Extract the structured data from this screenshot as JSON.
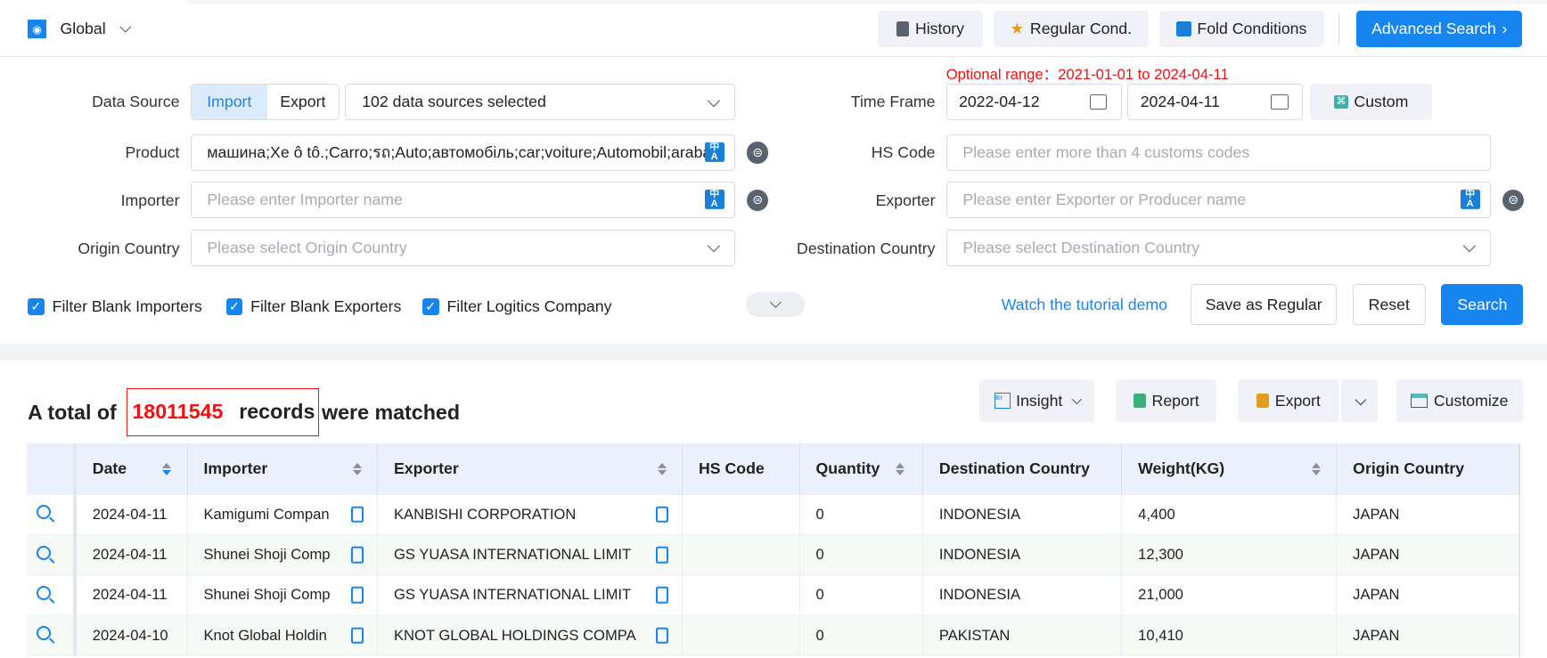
{
  "header": {
    "region": "Global",
    "buttons": {
      "history": "History",
      "regular": "Regular Cond.",
      "fold": "Fold Conditions",
      "advanced": "Advanced Search"
    }
  },
  "form": {
    "optional_range": "Optional range：2021-01-01 to 2024-04-11",
    "data_source": {
      "label": "Data Source",
      "import": "Import",
      "export": "Export",
      "selected": "102 data sources selected",
      "active": "Import"
    },
    "time_frame": {
      "label": "Time Frame",
      "start": "2022-04-12",
      "end": "2024-04-11",
      "custom": "Custom"
    },
    "product": {
      "label": "Product",
      "value": "машина;Xe ô tô.;Carro;รถ;Auto;автомобіль;car;voiture;Automobil;araba"
    },
    "hs_code": {
      "label": "HS Code",
      "placeholder": "Please enter more than 4 customs codes"
    },
    "importer": {
      "label": "Importer",
      "placeholder": "Please enter Importer name"
    },
    "exporter": {
      "label": "Exporter",
      "placeholder": "Please enter Exporter or Producer name"
    },
    "origin": {
      "label": "Origin Country",
      "placeholder": "Please select Origin Country"
    },
    "destination": {
      "label": "Destination Country",
      "placeholder": "Please select Destination Country"
    },
    "checkboxes": [
      {
        "label": "Filter Blank Importers",
        "checked": true
      },
      {
        "label": "Filter Blank Exporters",
        "checked": true
      },
      {
        "label": "Filter Logitics Company",
        "checked": true
      }
    ],
    "tutorial": "Watch the tutorial demo",
    "save_regular": "Save as Regular",
    "reset": "Reset",
    "search": "Search"
  },
  "results": {
    "prefix": "A total of",
    "count": "18011545",
    "records": "records",
    "suffix": "were matched",
    "toolbar": {
      "insight": "Insight",
      "report": "Report",
      "export": "Export",
      "customize": "Customize"
    },
    "columns": [
      "Date",
      "Importer",
      "Exporter",
      "HS Code",
      "Quantity",
      "Destination Country",
      "Weight(KG)",
      "Origin Country"
    ],
    "rows": [
      [
        "2024-04-11",
        "Kamigumi Compan",
        "KANBISHI CORPORATION",
        "",
        "0",
        "INDONESIA",
        "4,400",
        "JAPAN"
      ],
      [
        "2024-04-11",
        "Shunei Shoji Comp",
        "GS YUASA INTERNATIONAL LIMIT",
        "",
        "0",
        "INDONESIA",
        "12,300",
        "JAPAN"
      ],
      [
        "2024-04-11",
        "Shunei Shoji Comp",
        "GS YUASA INTERNATIONAL LIMIT",
        "",
        "0",
        "INDONESIA",
        "21,000",
        "JAPAN"
      ],
      [
        "2024-04-10",
        "Knot Global Holdin",
        "KNOT GLOBAL HOLDINGS COMPA",
        "",
        "0",
        "PAKISTAN",
        "10,410",
        "JAPAN"
      ]
    ]
  },
  "colors": {
    "primary": "#1785f0",
    "highlight": "#f01010",
    "header_bg": "#ebf0fd"
  }
}
